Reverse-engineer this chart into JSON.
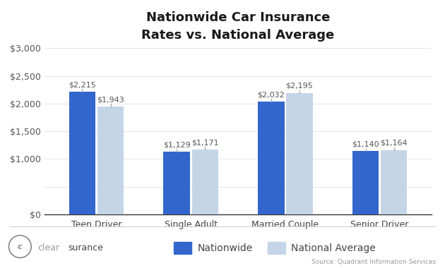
{
  "title": "Nationwide Car Insurance\nRates vs. National Average",
  "categories": [
    "Teen Driver",
    "Single Adult",
    "Married Couple",
    "Senior Driver"
  ],
  "nationwide": [
    2215,
    1129,
    2032,
    1140
  ],
  "national_avg": [
    1943,
    1171,
    2195,
    1164
  ],
  "nationwide_labels": [
    "$2,215",
    "$1,129",
    "$2,032",
    "$1,140"
  ],
  "national_avg_labels": [
    "$1,943",
    "$1,171",
    "$2,195",
    "$1,164"
  ],
  "nationwide_color": "#3366cc",
  "national_avg_color": "#c5d5e8",
  "bar_width": 0.28,
  "ylim": [
    0,
    3000
  ],
  "yticks": [
    0,
    500,
    1000,
    1500,
    2000,
    2500,
    3000
  ],
  "ytick_labels": [
    "$0",
    "",
    "$1,000",
    "$1,500",
    "$2,000",
    "$2,500",
    "$3,000"
  ],
  "title_fontsize": 13,
  "tick_fontsize": 9,
  "annotation_fontsize": 8,
  "legend_fontsize": 10,
  "background_color": "#ffffff",
  "legend_nationwide": "Nationwide",
  "legend_national_avg": "National Average",
  "source_text": "Source: Quadrant Information Services",
  "clearsurance_text": "clear",
  "clearsurance_text2": "surance"
}
